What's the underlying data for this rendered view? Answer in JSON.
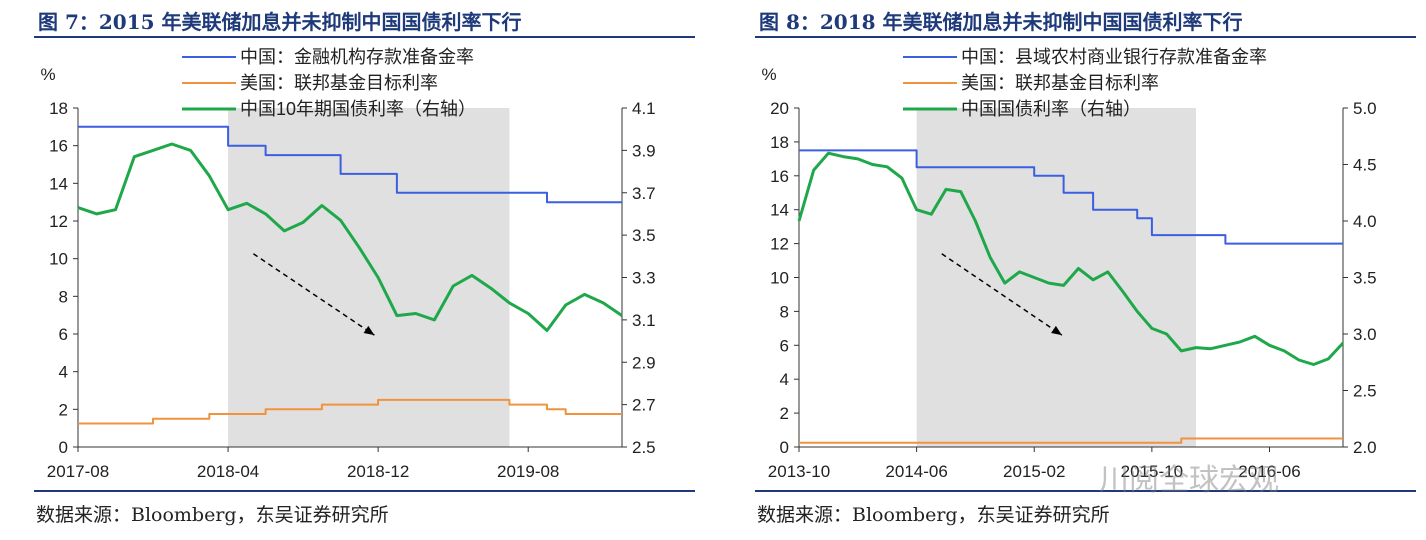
{
  "charts": [
    {
      "title": "图 7：2015 年美联储加息并未抑制中国国债利率下行",
      "source": "数据来源：Bloomberg，东吴证券研究所",
      "unit_label": "%",
      "legend": [
        "中国：金融机构存款准备金率",
        "美国：联邦基金目标利率",
        "中国10年期国债利率（右轴）"
      ],
      "colors": {
        "china_rrr": "#3b5fe0",
        "us_rate": "#f0923e",
        "china_bond": "#1fa84a",
        "shade": "#e0e0e0",
        "arrow": "#000000"
      }
    },
    {
      "title": "图 8：2018 年美联储加息并未抑制中国国债利率下行",
      "source": "数据来源：Bloomberg，东吴证券研究所",
      "unit_label": "%",
      "legend": [
        "中国：县域农村商业银行存款准备金率",
        "美国：联邦基金目标利率",
        "中国国债利率（右轴）"
      ],
      "colors": {
        "china_rrr": "#3b5fe0",
        "us_rate": "#f0923e",
        "china_bond": "#1fa84a",
        "shade": "#e0e0e0",
        "arrow": "#000000"
      }
    }
  ],
  "watermark": "川阅全球宏观",
  "chart_data": [
    {
      "type": "line",
      "title": "图 7：2015 年美联储加息并未抑制中国国债利率下行",
      "ylabel": "%",
      "x_ticks": [
        "2017-08",
        "2018-04",
        "2018-12",
        "2019-08"
      ],
      "x_range": [
        "2017-08",
        "2020-01"
      ],
      "y_left_ticks": [
        "0",
        "2",
        "4",
        "6",
        "8",
        "10",
        "12",
        "14",
        "16",
        "18"
      ],
      "y_left_range": [
        0,
        18
      ],
      "y_right_ticks": [
        "2.5",
        "2.7",
        "2.9",
        "3.1",
        "3.3",
        "3.5",
        "3.7",
        "3.9",
        "4.1"
      ],
      "y_right_range": [
        2.5,
        4.1
      ],
      "shaded_range": [
        "2018-04",
        "2019-07"
      ],
      "grid": false,
      "legend_position": "top",
      "series": [
        {
          "name": "中国：金融机构存款准备金率",
          "axis": "left",
          "step": true,
          "x": [
            "2017-08",
            "2018-04",
            "2018-06",
            "2018-10",
            "2019-01",
            "2019-09",
            "2020-01"
          ],
          "values": [
            17,
            16,
            15.5,
            14.5,
            13.5,
            13,
            13
          ]
        },
        {
          "name": "美国：联邦基金目标利率",
          "axis": "left",
          "step": true,
          "x": [
            "2017-08",
            "2017-12",
            "2018-03",
            "2018-06",
            "2018-09",
            "2018-12",
            "2019-07",
            "2019-09",
            "2019-10",
            "2020-01"
          ],
          "values": [
            1.25,
            1.5,
            1.75,
            2.0,
            2.25,
            2.5,
            2.25,
            2.0,
            1.75,
            1.75
          ]
        },
        {
          "name": "中国10年期国债利率（右轴）",
          "axis": "right",
          "step": false,
          "x": [
            "2017-08",
            "2017-09",
            "2017-10",
            "2017-11",
            "2017-12",
            "2018-01",
            "2018-02",
            "2018-03",
            "2018-04",
            "2018-05",
            "2018-06",
            "2018-07",
            "2018-08",
            "2018-09",
            "2018-10",
            "2018-11",
            "2018-12",
            "2019-01",
            "2019-02",
            "2019-03",
            "2019-04",
            "2019-05",
            "2019-06",
            "2019-07",
            "2019-08",
            "2019-09",
            "2019-10",
            "2019-11",
            "2019-12",
            "2020-01"
          ],
          "values": [
            3.63,
            3.6,
            3.62,
            3.87,
            3.9,
            3.93,
            3.9,
            3.78,
            3.62,
            3.65,
            3.6,
            3.52,
            3.56,
            3.64,
            3.57,
            3.44,
            3.3,
            3.12,
            3.13,
            3.1,
            3.26,
            3.31,
            3.25,
            3.18,
            3.13,
            3.05,
            3.17,
            3.22,
            3.18,
            3.12
          ]
        }
      ]
    },
    {
      "type": "line",
      "title": "图 8：2018 年美联储加息并未抑制中国国债利率下行",
      "ylabel": "%",
      "x_ticks": [
        "2013-10",
        "2014-06",
        "2015-02",
        "2015-10",
        "2016-06"
      ],
      "x_range": [
        "2013-10",
        "2016-11"
      ],
      "y_left_ticks": [
        "0",
        "2",
        "4",
        "6",
        "8",
        "10",
        "12",
        "14",
        "16",
        "18",
        "20"
      ],
      "y_left_range": [
        0,
        20
      ],
      "y_right_ticks": [
        "2.0",
        "2.5",
        "3.0",
        "3.5",
        "4.0",
        "4.5",
        "5.0"
      ],
      "y_right_range": [
        2.0,
        5.0
      ],
      "shaded_range": [
        "2014-06",
        "2016-01"
      ],
      "grid": false,
      "legend_position": "top",
      "series": [
        {
          "name": "中国：县域农村商业银行存款准备金率",
          "axis": "left",
          "step": true,
          "x": [
            "2013-10",
            "2014-06",
            "2015-02",
            "2015-04",
            "2015-06",
            "2015-09",
            "2015-10",
            "2016-03",
            "2016-11"
          ],
          "values": [
            17.5,
            16.5,
            16,
            15,
            14,
            13.5,
            12.5,
            12,
            12
          ]
        },
        {
          "name": "美国：联邦基金目标利率",
          "axis": "left",
          "step": true,
          "x": [
            "2013-10",
            "2015-12",
            "2016-11"
          ],
          "values": [
            0.25,
            0.5,
            0.5
          ]
        },
        {
          "name": "中国国债利率（右轴）",
          "axis": "right",
          "step": false,
          "x": [
            "2013-10",
            "2013-11",
            "2013-12",
            "2014-01",
            "2014-02",
            "2014-03",
            "2014-04",
            "2014-05",
            "2014-06",
            "2014-07",
            "2014-08",
            "2014-09",
            "2014-10",
            "2014-11",
            "2014-12",
            "2015-01",
            "2015-02",
            "2015-03",
            "2015-04",
            "2015-05",
            "2015-06",
            "2015-07",
            "2015-08",
            "2015-09",
            "2015-10",
            "2015-11",
            "2015-12",
            "2016-01",
            "2016-02",
            "2016-03",
            "2016-04",
            "2016-05",
            "2016-06",
            "2016-07",
            "2016-08",
            "2016-09",
            "2016-10",
            "2016-11"
          ],
          "values": [
            4.0,
            4.45,
            4.6,
            4.57,
            4.55,
            4.5,
            4.48,
            4.38,
            4.1,
            4.06,
            4.28,
            4.26,
            4.0,
            3.68,
            3.45,
            3.55,
            3.5,
            3.45,
            3.43,
            3.58,
            3.48,
            3.55,
            3.38,
            3.2,
            3.05,
            3.0,
            2.85,
            2.88,
            2.87,
            2.9,
            2.93,
            2.98,
            2.9,
            2.85,
            2.77,
            2.73,
            2.78,
            2.92
          ]
        }
      ]
    }
  ]
}
